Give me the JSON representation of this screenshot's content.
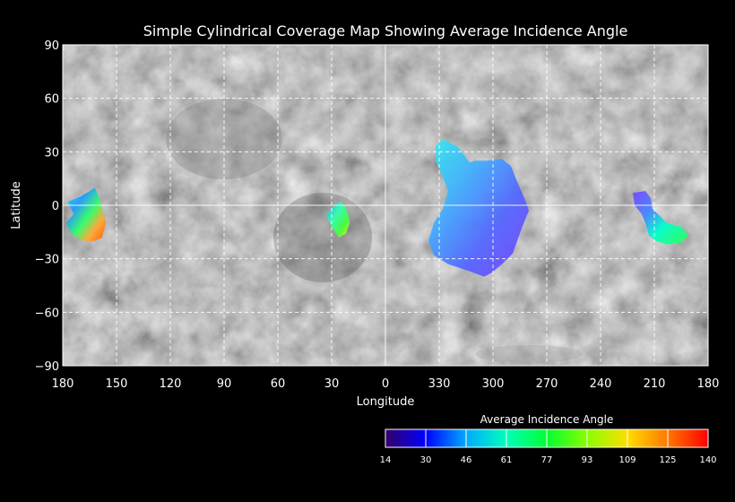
{
  "title": "Simple Cylindrical Coverage Map Showing Average Incidence Angle",
  "x_axis": {
    "label": "Longitude",
    "ticks": [
      "180",
      "150",
      "120",
      "90",
      "60",
      "30",
      "0",
      "330",
      "300",
      "270",
      "240",
      "210",
      "180"
    ]
  },
  "y_axis": {
    "label": "Latitude",
    "ticks": [
      "90",
      "60",
      "30",
      "0",
      "−30",
      "−60",
      "−90"
    ]
  },
  "grid": {
    "style": "dashed",
    "color": "#ffffff"
  },
  "colorbar": {
    "title": "Average Incidence Angle",
    "ticks": [
      "14",
      "30",
      "46",
      "61",
      "77",
      "93",
      "109",
      "125",
      "140"
    ],
    "colors": [
      "#330066",
      "#0000ff",
      "#00aaff",
      "#00ffbb",
      "#00ff33",
      "#88ff00",
      "#ffdd00",
      "#ff7700",
      "#ff0000"
    ]
  },
  "coverage_regions": [
    {
      "id": "region-far-west",
      "polygon": [
        [
          174,
          -5
        ],
        [
          177,
          2
        ],
        [
          170,
          5
        ],
        [
          165,
          8
        ],
        [
          162,
          10
        ],
        [
          160,
          5
        ],
        [
          158,
          -2
        ],
        [
          156,
          -10
        ],
        [
          158,
          -18
        ],
        [
          162,
          -20
        ],
        [
          168,
          -20
        ],
        [
          172,
          -18
        ],
        [
          176,
          -15
        ],
        [
          178,
          -10
        ]
      ],
      "gradient": [
        [
          "#00eeff",
          0
        ],
        [
          "#2299ff",
          0.3
        ],
        [
          "#33ff66",
          0.55
        ],
        [
          "#ffaa33",
          0.75
        ],
        [
          "#ff5500",
          1
        ]
      ]
    },
    {
      "id": "region-near-30",
      "polygon": [
        [
          30,
          -2
        ],
        [
          27,
          1
        ],
        [
          25,
          2
        ],
        [
          23,
          0
        ],
        [
          21,
          -4
        ],
        [
          20,
          -10
        ],
        [
          22,
          -16
        ],
        [
          26,
          -18
        ],
        [
          28,
          -15
        ],
        [
          31,
          -10
        ],
        [
          33,
          -5
        ]
      ],
      "gradient": [
        [
          "#22aaff",
          0
        ],
        [
          "#33ffaa",
          0.4
        ],
        [
          "#44ff44",
          0.7
        ],
        [
          "#ddff00",
          1
        ]
      ]
    },
    {
      "id": "region-large-central",
      "polygon": [
        [
          328,
          37
        ],
        [
          320,
          33
        ],
        [
          316,
          28
        ],
        [
          313,
          24
        ],
        [
          310,
          25
        ],
        [
          303,
          25
        ],
        [
          295,
          26
        ],
        [
          290,
          22
        ],
        [
          286,
          12
        ],
        [
          282,
          3
        ],
        [
          280,
          -3
        ],
        [
          284,
          -13
        ],
        [
          289,
          -27
        ],
        [
          295,
          -33
        ],
        [
          301,
          -38
        ],
        [
          305,
          -40
        ],
        [
          313,
          -37
        ],
        [
          325,
          -33
        ],
        [
          333,
          -28
        ],
        [
          336,
          -20
        ],
        [
          333,
          -10
        ],
        [
          328,
          -2
        ],
        [
          325,
          8
        ],
        [
          328,
          16
        ],
        [
          332,
          25
        ],
        [
          332,
          33
        ]
      ],
      "gradient": [
        [
          "#33eeee",
          0
        ],
        [
          "#44aaff",
          0.35
        ],
        [
          "#5566ff",
          0.65
        ],
        [
          "#7744ff",
          1
        ]
      ]
    },
    {
      "id": "region-east",
      "polygon": [
        [
          222,
          7
        ],
        [
          215,
          8
        ],
        [
          212,
          4
        ],
        [
          211,
          -2
        ],
        [
          207,
          -6
        ],
        [
          203,
          -10
        ],
        [
          195,
          -12
        ],
        [
          191,
          -17
        ],
        [
          195,
          -21
        ],
        [
          203,
          -22
        ],
        [
          209,
          -20
        ],
        [
          213,
          -17
        ],
        [
          215,
          -10
        ],
        [
          217,
          -5
        ],
        [
          221,
          0
        ]
      ],
      "gradient": [
        [
          "#7744ff",
          0
        ],
        [
          "#4488ff",
          0.35
        ],
        [
          "#00ffcc",
          0.6
        ],
        [
          "#33ff55",
          1
        ]
      ]
    }
  ]
}
